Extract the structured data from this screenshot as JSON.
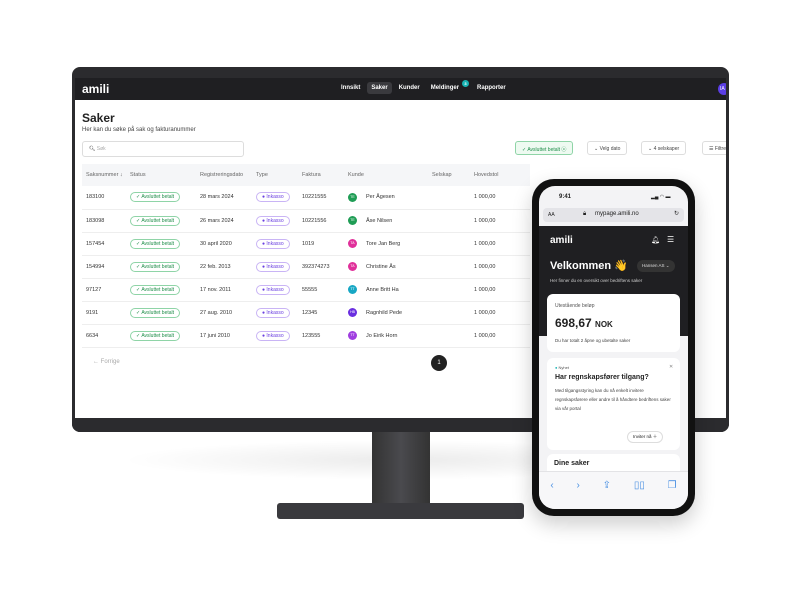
{
  "desktop": {
    "logo": "amili",
    "nav": [
      {
        "label": "Innsikt"
      },
      {
        "label": "Saker",
        "active": true
      },
      {
        "label": "Kunder"
      },
      {
        "label": "Meldinger",
        "badge": "3"
      },
      {
        "label": "Rapporter"
      }
    ],
    "user_initials": "IA",
    "title": "Saker",
    "subtitle": "Her kan du søke på sak og fakturanummer",
    "search_placeholder": "Søk",
    "filters": {
      "status": "Avsluttet betalt",
      "date": "Velg dato",
      "companies": "4 selskaper",
      "more": "Filtre"
    },
    "columns": [
      "Saksnummer ↓",
      "Status",
      "Registreringsdato",
      "Type",
      "Faktura",
      "Kunde",
      "",
      "Selskap",
      "Hovedstol"
    ],
    "rows": [
      {
        "id": "183100",
        "status": "Avsluttet betalt",
        "date": "28 mars 2024",
        "type": "Inkasso",
        "invoice": "10221555",
        "initials": "TE",
        "color": "#1f9d55",
        "customer": "Per Ågesen",
        "amount": "1 000,00"
      },
      {
        "id": "183098",
        "status": "Avsluttet betalt",
        "date": "26 mars 2024",
        "type": "Inkasso",
        "invoice": "10221556",
        "initials": "TE",
        "color": "#1f9d55",
        "customer": "Åse Nilsen",
        "amount": "1 000,00"
      },
      {
        "id": "157454",
        "status": "Avsluttet betalt",
        "date": "30 april 2020",
        "type": "Inkasso",
        "invoice": "1019",
        "initials": "TA",
        "color": "#e0309a",
        "customer": "Tore Jan Berg",
        "amount": "1 000,00"
      },
      {
        "id": "154994",
        "status": "Avsluttet betalt",
        "date": "22 feb. 2013",
        "type": "Inkasso",
        "invoice": "392374273",
        "initials": "TA",
        "color": "#e0309a",
        "customer": "Christine Ås",
        "amount": "1 000,00"
      },
      {
        "id": "97127",
        "status": "Avsluttet betalt",
        "date": "17 nov. 2011",
        "type": "Inkasso",
        "invoice": "55555",
        "initials": "TT",
        "color": "#17a7c4",
        "customer": "Anne Britt Ha",
        "amount": "1 000,00"
      },
      {
        "id": "9191",
        "status": "Avsluttet betalt",
        "date": "27 aug. 2010",
        "type": "Inkasso",
        "invoice": "12345",
        "initials": "HB",
        "color": "#6a2fe0",
        "customer": "Ragnhild Pede",
        "amount": "1 000,00"
      },
      {
        "id": "6634",
        "status": "Avsluttet betalt",
        "date": "17 juni 2010",
        "type": "Inkasso",
        "invoice": "123555",
        "initials": "TT",
        "color": "#a03ee0",
        "customer": "Jo Eirik Horn",
        "amount": "1 000,00"
      }
    ],
    "pager": {
      "prev": "← Forrige",
      "page": "1"
    }
  },
  "phone": {
    "time": "9:41",
    "text_size": "AA",
    "url": "mypage.amili.no",
    "logo": "amili",
    "welcome": "Velkommen 👋",
    "company": "Hansen AS",
    "intro": "Her finner du en oversikt over bedriftens saker",
    "outstanding_label": "Utestående beløp",
    "outstanding_amount": "698,67",
    "currency": "NOK",
    "outstanding_note": "Du har totalt 2 åpne og ubetalte saker",
    "news_tag": "Nyhet",
    "news_title": "Har regnskapsfører tilgang?",
    "news_body": "Med tilgangsstyring kan du nå enkelt invitere regnskapsførere eller andre til å håndtere bedriftens saker via vår portal",
    "invite_label": "Inviter nå",
    "cases_title": "Dine saker"
  }
}
